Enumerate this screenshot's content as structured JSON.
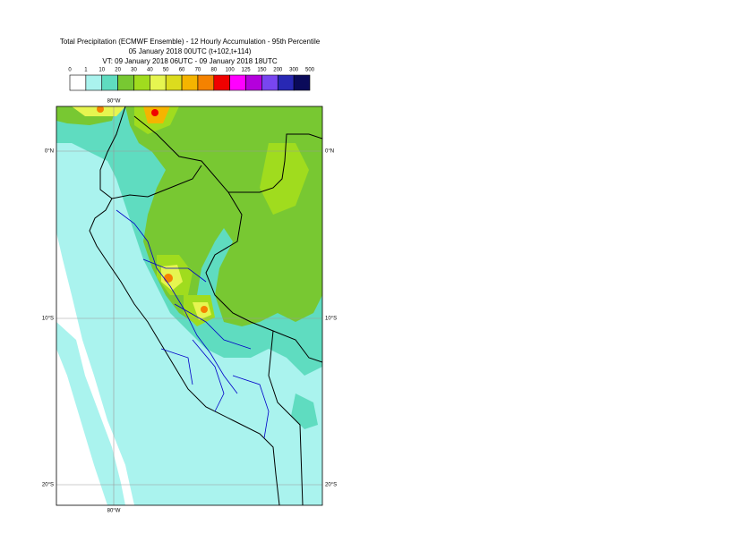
{
  "header": {
    "title": [
      "Total Precipitation (ECMWF Ensemble) - 12 Hourly Accumulation - 95th Percentile",
      "05 January 2018 00UTC (t+102,t+114)",
      "VT: 09 January 2018 06UTC - 09 January 2018 18UTC"
    ]
  },
  "legend": {
    "labels": [
      "0",
      "1",
      "10",
      "20",
      "30",
      "40",
      "50",
      "60",
      "70",
      "80",
      "100",
      "125",
      "150",
      "200",
      "300",
      "500"
    ],
    "colors": [
      "#ffffff",
      "#aaf3ee",
      "#5fdcc0",
      "#78c832",
      "#a0dc1e",
      "#e6f550",
      "#dcdc1e",
      "#f5b400",
      "#f58200",
      "#f00000",
      "#ff00ff",
      "#b400dc",
      "#7846f0",
      "#2828b4",
      "#0a0a5a"
    ]
  },
  "map": {
    "lon_label": "80°W",
    "lat_labels": [
      "0°N",
      "10°S",
      "20°S"
    ]
  }
}
